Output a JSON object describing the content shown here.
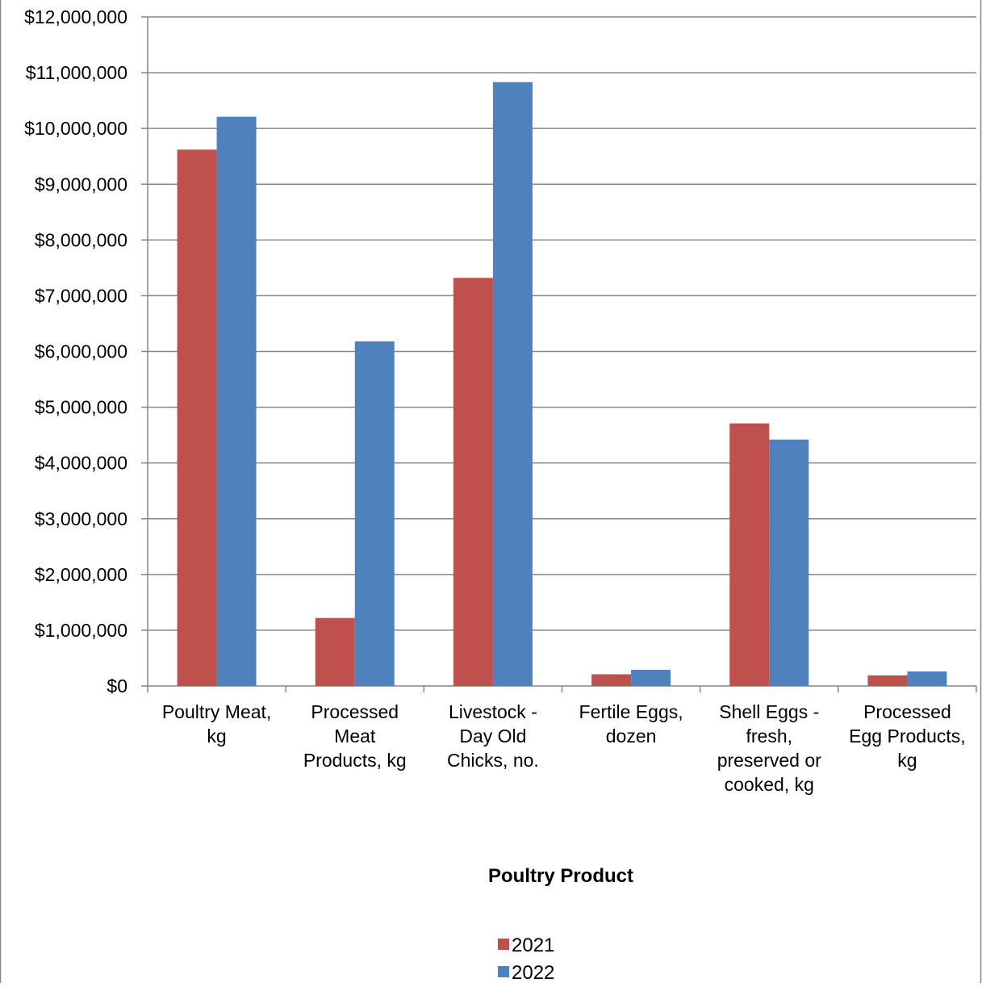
{
  "chart_data": {
    "type": "bar",
    "title": "",
    "xlabel": "Poultry Product",
    "ylabel": "",
    "categories": [
      [
        "Poultry Meat,",
        "kg"
      ],
      [
        "Processed",
        "Meat",
        "Products, kg"
      ],
      [
        "Livestock -",
        "Day Old",
        "Chicks, no."
      ],
      [
        "Fertile Eggs,",
        "dozen"
      ],
      [
        "Shell Eggs -",
        "fresh,",
        "preserved or",
        "cooked, kg"
      ],
      [
        "Processed",
        "Egg Products,",
        "kg"
      ]
    ],
    "series": [
      {
        "name": "2021",
        "color": "#c0504d",
        "values": [
          9620000,
          1220000,
          7320000,
          210000,
          4710000,
          190000
        ]
      },
      {
        "name": "2022",
        "color": "#4f81bd",
        "values": [
          10210000,
          6180000,
          10830000,
          290000,
          4420000,
          260000
        ]
      }
    ],
    "ylim": [
      0,
      12000000
    ],
    "y_ticks": [
      0,
      1000000,
      2000000,
      3000000,
      4000000,
      5000000,
      6000000,
      7000000,
      8000000,
      9000000,
      10000000,
      11000000,
      12000000
    ],
    "y_tick_labels": [
      "$0",
      "$1,000,000",
      "$2,000,000",
      "$3,000,000",
      "$4,000,000",
      "$5,000,000",
      "$6,000,000",
      "$7,000,000",
      "$8,000,000",
      "$9,000,000",
      "$10,000,000",
      "$11,000,000",
      "$12,000,000"
    ],
    "grid": true,
    "legend_position": "bottom"
  }
}
